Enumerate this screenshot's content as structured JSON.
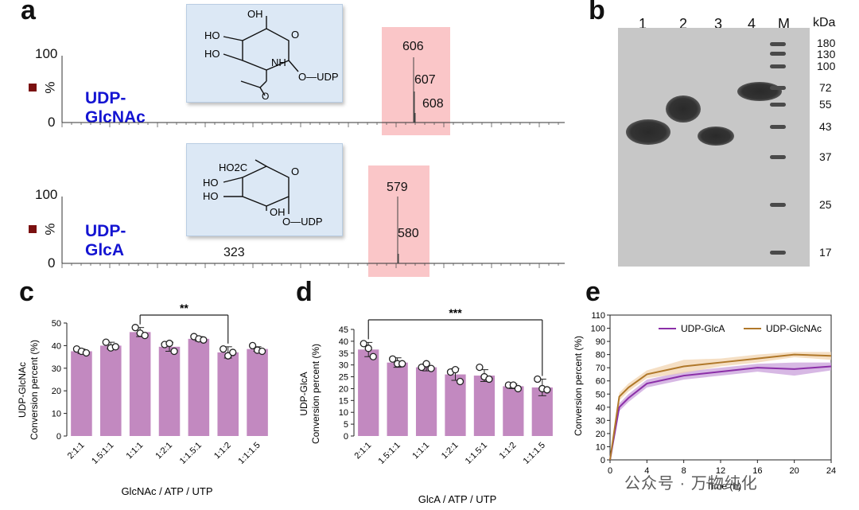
{
  "panel_a": {
    "label": "a",
    "top": {
      "compound": "UDP-GlcNAc",
      "y_max": "100",
      "y_min": "0",
      "y_unit": "%",
      "peaks": [
        "606",
        "607",
        "608"
      ],
      "structure": {
        "oh1": "OH",
        "ho1": "HO",
        "ho2": "HO",
        "nh": "NH",
        "o": "O",
        "udp": "O—UDP",
        "carbonyl_o": "O"
      }
    },
    "bottom": {
      "compound": "UDP-GlcA",
      "y_max": "100",
      "y_min": "0",
      "y_unit": "%",
      "peaks": [
        "579",
        "580"
      ],
      "minor_peak": "323",
      "structure": {
        "ho2c": "HO2C",
        "ho1": "HO",
        "ho2": "HO",
        "oh": "OH",
        "o": "O",
        "udp": "O—UDP"
      }
    }
  },
  "panel_b": {
    "label": "b",
    "lanes": [
      "1",
      "2",
      "3",
      "4",
      "M"
    ],
    "unit": "kDa",
    "markers": [
      "180",
      "130",
      "100",
      "72",
      "55",
      "43",
      "37",
      "25",
      "17"
    ]
  },
  "panel_c": {
    "label": "c",
    "significance": "**",
    "xlabel": "GlcNAc / ATP / UTP",
    "ylabel_line1": "UDP-GlcNAc",
    "ylabel_line2": "Conversion percent (%)",
    "ticks": [
      "0",
      "10",
      "20",
      "30",
      "40",
      "50"
    ]
  },
  "panel_d": {
    "label": "d",
    "significance": "***",
    "xlabel": "GlcA / ATP / UTP",
    "ylabel_line1": "UDP-GlcA",
    "ylabel_line2": "Conversion percent (%)",
    "ticks": [
      "0",
      "5",
      "10",
      "15",
      "20",
      "25",
      "30",
      "35",
      "40",
      "45"
    ]
  },
  "panel_e": {
    "label": "e",
    "xlabel": "Time (h)",
    "ylabel": "Conversion percent (%)",
    "xticks": [
      "0",
      "4",
      "8",
      "12",
      "16",
      "20",
      "24"
    ],
    "yticks": [
      "0",
      "10",
      "20",
      "30",
      "40",
      "50",
      "60",
      "70",
      "80",
      "90",
      "100",
      "110"
    ]
  },
  "watermark": "公众号 · 万物纯化",
  "chart_data": [
    {
      "type": "bar",
      "title": "c",
      "categories": [
        "2:1:1",
        "1.5:1:1",
        "1:1:1",
        "1:2:1",
        "1:1.5:1",
        "1:1:2",
        "1:1:1.5"
      ],
      "values": [
        37.5,
        40.0,
        46.0,
        39.5,
        43.0,
        37.0,
        38.5
      ],
      "errors": [
        1.0,
        1.5,
        2.0,
        2.0,
        1.0,
        2.5,
        1.0
      ],
      "points": [
        [
          38.5,
          37.5,
          36.8
        ],
        [
          41.5,
          39.0,
          39.5
        ],
        [
          48.0,
          45.5,
          44.5
        ],
        [
          40.5,
          41.0,
          37.5
        ],
        [
          44.0,
          43.0,
          42.5
        ],
        [
          38.5,
          35.5,
          37.0
        ],
        [
          40.0,
          38.0,
          37.5
        ]
      ],
      "xlabel": "GlcNAc / ATP / UTP",
      "ylabel": "UDP-GlcNAc Conversion percent (%)",
      "ylim": [
        0,
        50
      ],
      "significance": {
        "from": 2,
        "to": 5,
        "label": "**"
      }
    },
    {
      "type": "bar",
      "title": "d",
      "categories": [
        "2:1:1",
        "1.5:1:1",
        "1:1:1",
        "1:2:1",
        "1:1.5:1",
        "1:1:2",
        "1:1:1.5"
      ],
      "values": [
        36.5,
        31.0,
        29.0,
        26.0,
        25.5,
        21.0,
        20.5
      ],
      "errors": [
        3.0,
        2.0,
        1.5,
        2.5,
        2.5,
        1.0,
        3.5
      ],
      "points": [
        [
          39.0,
          37.0,
          33.5
        ],
        [
          32.5,
          30.5,
          30.5
        ],
        [
          29.0,
          30.5,
          28.5
        ],
        [
          27.0,
          28.0,
          23.0
        ],
        [
          29.0,
          25.0,
          24.0
        ],
        [
          21.5,
          21.5,
          20.0
        ],
        [
          24.0,
          20.0,
          19.5
        ]
      ],
      "xlabel": "GlcA / ATP / UTP",
      "ylabel": "UDP-GlcA Conversion percent (%)",
      "ylim": [
        0,
        45
      ],
      "significance": {
        "from": 0,
        "to": 6,
        "label": "***"
      }
    },
    {
      "type": "line",
      "title": "e",
      "x": [
        0,
        1,
        2,
        4,
        8,
        12,
        16,
        20,
        24
      ],
      "xlim": [
        0,
        24
      ],
      "ylim": [
        0,
        110
      ],
      "xlabel": "Time (h)",
      "ylabel": "Conversion percent (%)",
      "legend": "top",
      "series": [
        {
          "name": "UDP-GlcA",
          "color": "#8b2fa8",
          "band": "#c9a0db",
          "values": [
            0,
            40,
            47,
            58,
            64,
            67,
            70,
            69,
            71
          ],
          "sd": [
            0,
            3,
            3,
            3,
            3,
            3,
            3,
            5,
            3
          ]
        },
        {
          "name": "UDP-GlcNAc",
          "color": "#b0782a",
          "band": "#f1d4b0",
          "values": [
            0,
            48,
            55,
            65,
            71,
            74,
            77,
            80,
            79
          ],
          "sd": [
            0,
            3,
            3,
            3,
            5,
            3,
            3,
            2,
            3
          ]
        }
      ]
    }
  ],
  "colors": {
    "bar": "#c289c0",
    "mass_text_blue": "#1414d2",
    "accent_square": "#7a1010"
  }
}
